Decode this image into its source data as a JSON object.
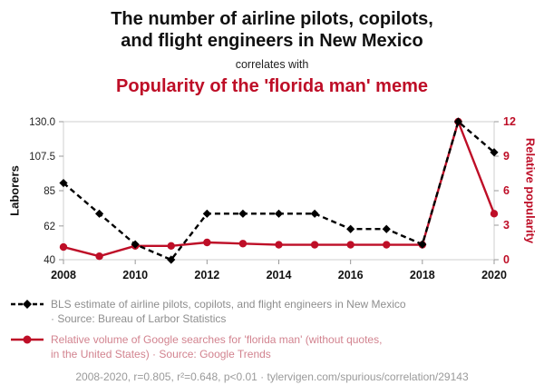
{
  "header": {
    "title_line1": "The number of airline pilots, copilots,",
    "title_line2": "and flight engineers in New Mexico",
    "connector": "correlates with",
    "subtitle": "Popularity of the 'florida man' meme"
  },
  "chart_data": {
    "type": "line",
    "x": [
      2008,
      2009,
      2010,
      2011,
      2012,
      2013,
      2014,
      2015,
      2016,
      2017,
      2018,
      2019,
      2020
    ],
    "x_range": [
      2008,
      2020
    ],
    "x_ticks": [
      2008,
      2010,
      2012,
      2014,
      2016,
      2018,
      2020
    ],
    "left_axis": {
      "label": "Laborers",
      "ticks": [
        40,
        62,
        85,
        107.5,
        130
      ],
      "tick_labels": [
        "40",
        "62",
        "85",
        "107.5",
        "130.0"
      ],
      "range": [
        40,
        130
      ]
    },
    "right_axis": {
      "label": "Relative popularity",
      "ticks": [
        0,
        3,
        6,
        9,
        12
      ],
      "tick_labels": [
        "0",
        "3",
        "6",
        "9",
        "12"
      ],
      "range": [
        0,
        12
      ]
    },
    "series": [
      {
        "name": "bls-pilots-new-mexico",
        "axis": "left",
        "color": "#000000",
        "dash": true,
        "marker": "diamond",
        "values": [
          90,
          70,
          50,
          40,
          70,
          70,
          70,
          70,
          60,
          60,
          50,
          130,
          110
        ]
      },
      {
        "name": "florida-man-search-volume",
        "axis": "right",
        "color": "#be0e27",
        "dash": false,
        "marker": "circle",
        "values": [
          1.1,
          0.3,
          1.2,
          1.2,
          1.5,
          1.4,
          1.3,
          1.3,
          1.3,
          1.3,
          1.3,
          12,
          4
        ]
      }
    ],
    "grid": false,
    "legend_position": "bottom"
  },
  "legend": [
    {
      "line1": "BLS estimate of airline pilots, copilots, and flight engineers in New Mexico",
      "line2": "· Source: Bureau of Larbor Statistics"
    },
    {
      "line1": "Relative volume of Google searches for 'florida man' (without quotes,",
      "line2": "in the United States) · Source: Google Trends"
    }
  ],
  "footer": "2008-2020, r=0.805, r²=0.648, p<0.01 · tylervigen.com/spurious/correlation/29143",
  "colors": {
    "accent_red": "#be0e27",
    "series_black": "#000000",
    "legend_gray": "#8e8e8e",
    "legend_rose": "#d2838f",
    "footer_gray": "#9a9a9a",
    "frame_gray": "#cfcfcf"
  }
}
